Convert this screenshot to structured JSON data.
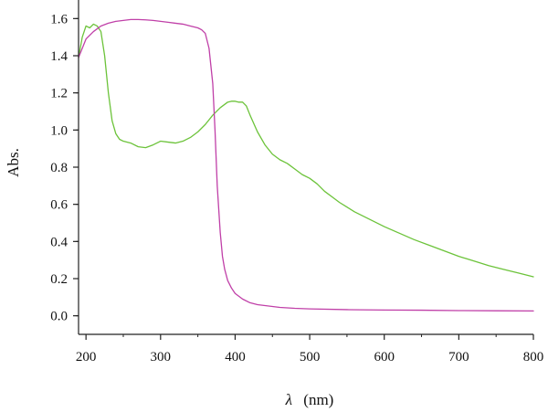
{
  "chart_data": {
    "type": "line",
    "xlabel_symbol": "λ",
    "xlabel_unit": "(nm)",
    "ylabel": "Abs.",
    "xlim": [
      190,
      800
    ],
    "ylim": [
      -0.1,
      1.7
    ],
    "xticks": [
      200,
      300,
      400,
      500,
      600,
      700,
      800
    ],
    "xtick_labels": [
      "200",
      "300",
      "400",
      "500",
      "600",
      "700",
      "800"
    ],
    "yticks": [
      0.0,
      0.2,
      0.4,
      0.6,
      0.8,
      1.0,
      1.2,
      1.4,
      1.6
    ],
    "ytick_labels": [
      "0.0",
      "0.2",
      "0.4",
      "0.6",
      "0.8",
      "1.0",
      "1.2",
      "1.4",
      "1.6"
    ],
    "grid": false,
    "series": [
      {
        "color": "#6cc33a",
        "x": [
          190,
          195,
          200,
          205,
          210,
          215,
          220,
          225,
          230,
          235,
          240,
          245,
          250,
          260,
          270,
          280,
          290,
          300,
          310,
          320,
          330,
          340,
          350,
          360,
          370,
          380,
          390,
          395,
          400,
          405,
          410,
          415,
          420,
          430,
          440,
          450,
          460,
          470,
          480,
          490,
          500,
          510,
          520,
          530,
          540,
          550,
          560,
          580,
          600,
          620,
          640,
          660,
          680,
          700,
          720,
          740,
          760,
          780,
          800
        ],
        "y": [
          1.39,
          1.5,
          1.56,
          1.55,
          1.57,
          1.56,
          1.53,
          1.4,
          1.2,
          1.05,
          0.98,
          0.95,
          0.94,
          0.93,
          0.91,
          0.905,
          0.92,
          0.94,
          0.935,
          0.93,
          0.94,
          0.96,
          0.99,
          1.03,
          1.08,
          1.12,
          1.15,
          1.155,
          1.155,
          1.15,
          1.15,
          1.13,
          1.08,
          0.99,
          0.92,
          0.87,
          0.84,
          0.82,
          0.79,
          0.76,
          0.74,
          0.71,
          0.67,
          0.64,
          0.61,
          0.585,
          0.56,
          0.52,
          0.48,
          0.445,
          0.41,
          0.38,
          0.35,
          0.32,
          0.295,
          0.27,
          0.25,
          0.23,
          0.21
        ]
      },
      {
        "color": "#c040a8",
        "x": [
          190,
          195,
          200,
          210,
          220,
          230,
          240,
          250,
          260,
          270,
          280,
          290,
          300,
          310,
          320,
          330,
          340,
          350,
          355,
          360,
          365,
          370,
          373,
          376,
          380,
          383,
          386,
          390,
          395,
          400,
          410,
          420,
          430,
          440,
          460,
          480,
          500,
          550,
          600,
          650,
          700,
          750,
          800
        ],
        "y": [
          1.39,
          1.44,
          1.49,
          1.53,
          1.56,
          1.575,
          1.585,
          1.59,
          1.595,
          1.595,
          1.593,
          1.59,
          1.585,
          1.58,
          1.575,
          1.57,
          1.56,
          1.55,
          1.54,
          1.52,
          1.44,
          1.25,
          1.0,
          0.7,
          0.45,
          0.32,
          0.25,
          0.19,
          0.15,
          0.12,
          0.09,
          0.07,
          0.06,
          0.055,
          0.045,
          0.04,
          0.037,
          0.033,
          0.031,
          0.03,
          0.028,
          0.027,
          0.026
        ]
      }
    ]
  }
}
